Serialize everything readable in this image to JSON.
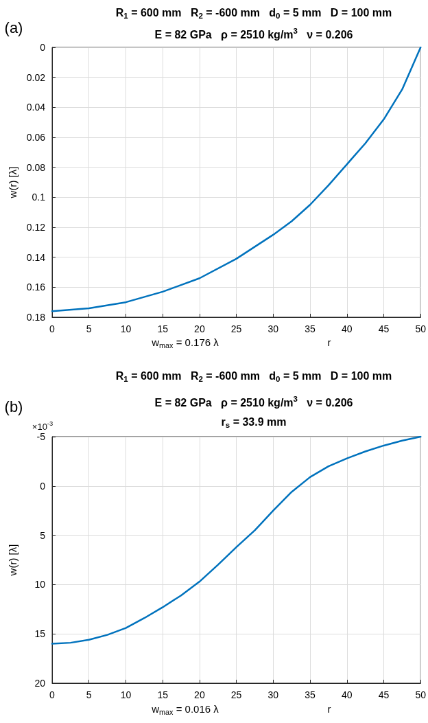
{
  "chart_data": [
    {
      "type": "line",
      "title": "R$_{1}$ = 600 mm   R$_{2}$ = -600 mm   d$_{0}$ = 5 mm   D = 100 mm",
      "subtitle": "E = 82 GPa   ρ = 2510 kg/m$^{3}$   ν = 0.206",
      "xlabel": "r",
      "ylabel": "w(r) [λ]",
      "annotations": [
        "(a)",
        "w$_{max}$ = 0.176 λ"
      ],
      "x": [
        0,
        5,
        10,
        15,
        20,
        25,
        30,
        32.5,
        35,
        37.5,
        40,
        42.5,
        45,
        47.5,
        50
      ],
      "series": [
        {
          "color": "#0072bd",
          "values": [
            0.176,
            0.174,
            0.17,
            0.163,
            0.154,
            0.141,
            0.125,
            0.116,
            0.105,
            0.092,
            0.078,
            0.064,
            0.048,
            0.028,
            0
          ]
        }
      ],
      "xlim": [
        0,
        50
      ],
      "xticks": [
        0,
        5,
        10,
        15,
        20,
        25,
        30,
        35,
        40,
        45,
        50
      ],
      "ylim": [
        0.18,
        0
      ],
      "yticks": [
        0,
        0.02,
        0.04,
        0.06,
        0.08,
        0.1,
        0.12,
        0.14,
        0.16,
        0.18
      ],
      "grid": true,
      "marker": "none",
      "line_style": "solid"
    },
    {
      "type": "line",
      "title": "R$_{1}$ = 600 mm   R$_{2}$ = -600 mm   d$_{0}$ = 5 mm   D = 100 mm",
      "subtitle": "E = 82 GPa   ρ = 2510 kg/m$^{3}$   ν = 0.206\nr$_{s}$ = 33.9 mm",
      "xlabel": "r",
      "ylabel": "w(r) [λ]",
      "annotations": [
        "(b)",
        "×10$^{-3}$",
        "w$_{max}$ = 0.016 λ"
      ],
      "x": [
        0,
        2.5,
        5,
        7.5,
        10,
        12.5,
        15,
        17.5,
        20,
        22.5,
        25,
        27.5,
        30,
        32.5,
        35,
        37.5,
        40,
        42.5,
        45,
        47.5,
        50
      ],
      "series": [
        {
          "color": "#0072bd",
          "values": [
            16,
            15.9,
            15.6,
            15.1,
            14.4,
            13.4,
            12.3,
            11.1,
            9.7,
            8.0,
            6.2,
            4.5,
            2.5,
            0.6,
            -0.9,
            -2.0,
            -2.8,
            -3.5,
            -4.1,
            -4.6,
            -5
          ]
        }
      ],
      "xlim": [
        0,
        50
      ],
      "xticks": [
        0,
        5,
        10,
        15,
        20,
        25,
        30,
        35,
        40,
        45,
        50
      ],
      "ylim": [
        20,
        -5
      ],
      "yticks": [
        -5,
        0,
        5,
        10,
        15,
        20
      ],
      "grid": true,
      "marker": "none",
      "line_style": "solid"
    }
  ]
}
